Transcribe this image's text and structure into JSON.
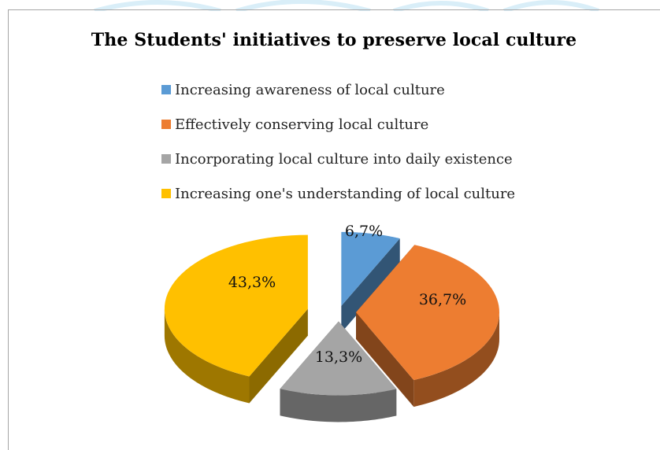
{
  "chart_data": {
    "type": "pie",
    "title": "The Students' initiatives to preserve local culture",
    "categories": [
      "Increasing awareness of local culture",
      "Effectively conserving local culture",
      "Incorporating local culture into daily existence",
      "Increasing one's understanding of local culture"
    ],
    "values": [
      6.7,
      36.7,
      13.3,
      43.3
    ],
    "data_labels": [
      "6,7%",
      "36,7%",
      "13,3%",
      "43,3%"
    ],
    "colors": [
      "#5b9bd5",
      "#ed7d31",
      "#a5a5a5",
      "#ffc000"
    ],
    "legend_position": "top",
    "style": "3d-exploded-pie"
  }
}
